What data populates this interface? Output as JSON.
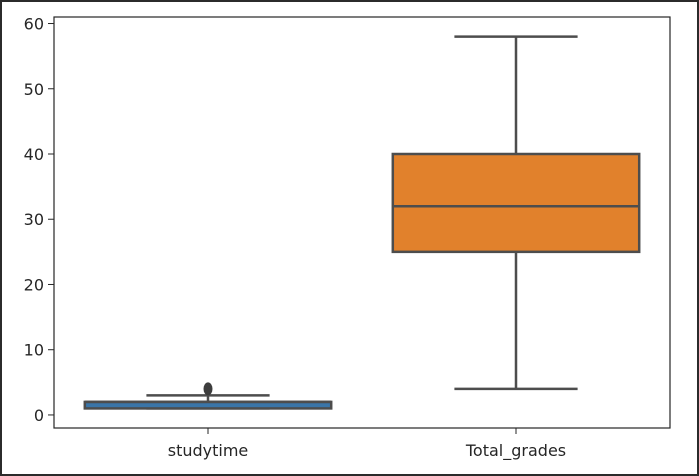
{
  "chart_data": {
    "type": "boxplot",
    "title": "",
    "xlabel": "",
    "ylabel": "",
    "ylim": [
      -2,
      61
    ],
    "yticks": [
      0,
      10,
      20,
      30,
      40,
      50,
      60
    ],
    "grid": false,
    "categories": [
      "studytime",
      "Total_grades"
    ],
    "series": [
      {
        "category": "studytime",
        "color": "#3a75a8",
        "whisker_low": 1,
        "q1": 1,
        "median": 2,
        "q3": 2,
        "whisker_high": 3,
        "outliers": [
          4
        ]
      },
      {
        "category": "Total_grades",
        "color": "#e1812c",
        "whisker_low": 4,
        "q1": 25,
        "median": 32,
        "q3": 40,
        "whisker_high": 58,
        "outliers": []
      }
    ]
  }
}
